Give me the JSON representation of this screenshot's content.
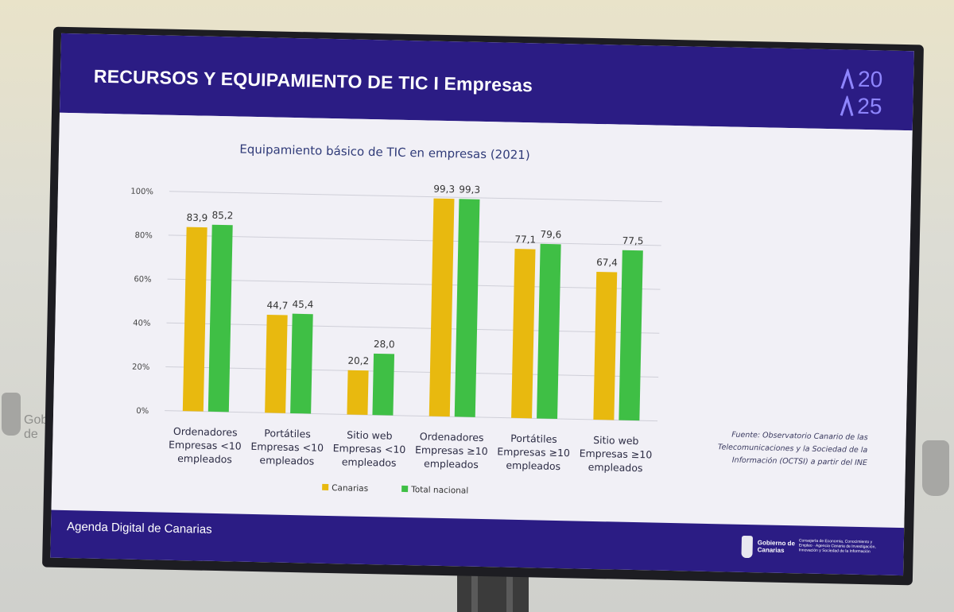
{
  "slide": {
    "title": "RECURSOS Y EQUIPAMIENTO DE TIC I Empresas",
    "logo_line1": "20",
    "logo_line2": "25",
    "footer": "Agenda Digital de Canarias",
    "gov_name": "Gobierno de Canarias",
    "gov_agency": "Consejería de Economía, Conocimiento y Empleo · Agencia Canaria de Investigación, Innovación y Sociedad de la Información",
    "source": "Fuente: Observatorio Canario de las Telecomunicaciones y la Sociedad de la Información (OCTSI) a partir del INE"
  },
  "wall": {
    "left_logo_text": "Gobierno de Canarias"
  },
  "colors": {
    "band": "#2b1c84",
    "canarias": "#e8b90f",
    "nacional": "#3fbf45",
    "title_text": "#2f3a78"
  },
  "chart_data": {
    "type": "bar",
    "title": "Equipamiento básico de TIC en empresas (2021)",
    "categories": [
      [
        "Ordenadores",
        "Empresas <10",
        "empleados"
      ],
      [
        "Portátiles",
        "Empresas <10",
        "empleados"
      ],
      [
        "Sitio web",
        "Empresas <10",
        "empleados"
      ],
      [
        "Ordenadores",
        "Empresas ≥10",
        "empleados"
      ],
      [
        "Portátiles",
        "Empresas ≥10",
        "empleados"
      ],
      [
        "Sitio web",
        "Empresas ≥10",
        "empleados"
      ]
    ],
    "series": [
      {
        "name": "Canarias",
        "values": [
          83.9,
          44.7,
          20.2,
          99.3,
          77.1,
          67.4
        ],
        "labels": [
          "83,9",
          "44,7",
          "20,2",
          "99,3",
          "77,1",
          "67,4"
        ]
      },
      {
        "name": "Total nacional",
        "values": [
          85.2,
          45.4,
          28.0,
          99.3,
          79.6,
          77.5
        ],
        "labels": [
          "85,2",
          "45,4",
          "28,0",
          "99,3",
          "79,6",
          "77,5"
        ]
      }
    ],
    "yticks": [
      "0%",
      "20%",
      "40%",
      "60%",
      "80%",
      "100%"
    ],
    "ylim": [
      0,
      100
    ],
    "xlabel": "",
    "ylabel": "",
    "grid": true,
    "legend": "bottom"
  }
}
